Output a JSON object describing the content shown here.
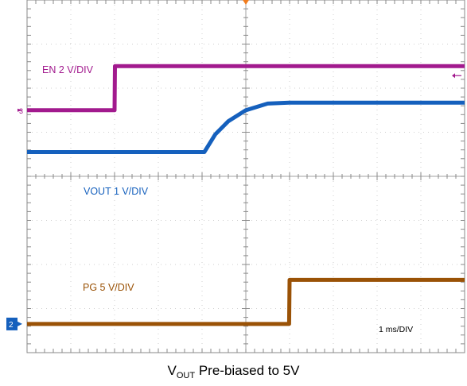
{
  "chart_data": {
    "type": "line",
    "title": "",
    "grid": true,
    "time_per_div": "1 ms/DIV",
    "x_divisions": 10,
    "y_divisions": 8,
    "x": [
      0,
      2.0,
      2.01,
      4.05,
      4.3,
      4.6,
      5.0,
      5.5,
      5.99,
      6.0,
      10
    ],
    "series": [
      {
        "name": "EN",
        "color": "#a21a8e",
        "channel_marker": "3",
        "scale_label": "EN 2 V/DIV",
        "values_div": [
          5.5,
          5.5,
          6.5,
          6.5,
          6.5,
          6.5,
          6.5,
          6.5,
          6.5,
          6.5,
          6.5
        ]
      },
      {
        "name": "VOUT",
        "color": "#1560bd",
        "scale_label": "VOUT 1 V/DIV",
        "values_div": [
          4.55,
          4.55,
          4.55,
          4.55,
          4.95,
          5.25,
          5.5,
          5.65,
          5.67,
          5.67,
          5.67
        ]
      },
      {
        "name": "PG",
        "color": "#9a5206",
        "channel_marker": "2",
        "scale_label": "PG 5 V/DIV",
        "values_div": [
          0.65,
          0.65,
          0.65,
          0.65,
          0.65,
          0.65,
          0.65,
          0.65,
          0.65,
          1.65,
          1.65
        ]
      }
    ]
  },
  "caption": {
    "prefix": "V",
    "subscript": "OUT",
    "suffix": " Pre-biased to 5V"
  }
}
